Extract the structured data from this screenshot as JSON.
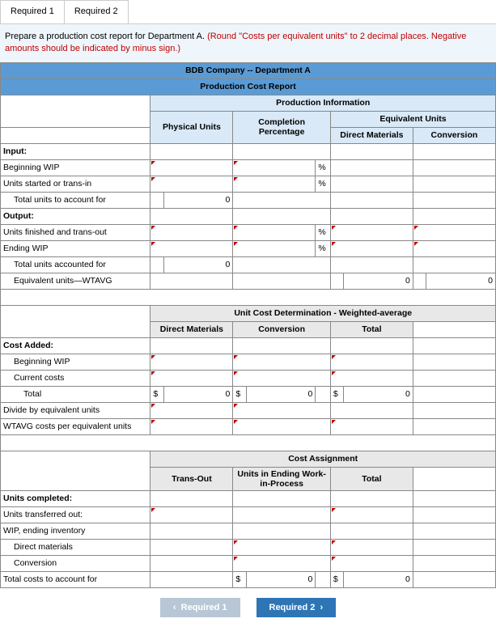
{
  "tabs": {
    "t1": "Required 1",
    "t2": "Required 2"
  },
  "instruction": {
    "black": "Prepare a production cost report for Department A. ",
    "red": "(Round \"Costs per equivalent units\" to 2 decimal places. Negative amounts should be indicated by minus sign.)"
  },
  "headers": {
    "company": "BDB Company -- Department A",
    "report": "Production Cost Report",
    "prodInfo": "Production Information",
    "equivUnits": "Equivalent Units",
    "physicalUnits": "Physical Units",
    "completionPct": "Completion Percentage",
    "directMaterials": "Direct Materials",
    "conversion": "Conversion",
    "unitCostDet": "Unit Cost Determination - Weighted-average",
    "total": "Total",
    "costAssignment": "Cost Assignment",
    "transOut": "Trans-Out",
    "unitsEndingWIP": "Units in Ending Work-in-Process"
  },
  "rows": {
    "input": "Input:",
    "beginningWIP": "Beginning WIP",
    "unitsStarted": "Units started or trans-in",
    "totalUnitsAccount": "Total units to account for",
    "output": "Output:",
    "unitsFinished": "Units finished and trans-out",
    "endingWIP": "Ending WIP",
    "totalUnitsAccounted": "Total units accounted for",
    "equivUnitsWTAVG": "Equivalent units—WTAVG",
    "costAdded": "Cost Added:",
    "currentCosts": "Current costs",
    "total": "Total",
    "divideEquiv": "Divide by equivalent units",
    "wtavgCosts": "WTAVG costs per equivalent units",
    "unitsCompleted": "Units completed:",
    "unitsTransOut": "Units transferred out:",
    "wipEndingInv": "WIP, ending inventory",
    "directMaterials": "Direct materials",
    "conversion": "Conversion",
    "totalCostsAccount": "Total costs to account for"
  },
  "values": {
    "zero": "0",
    "pct": "%",
    "dollar": "$"
  },
  "nav": {
    "prev": "Required 1",
    "next": "Required 2"
  },
  "style": {
    "header_blue": "#5b9bd5",
    "header_light": "#d9e9f7",
    "border": "#888888",
    "accent_marker": "#c00000",
    "nav_prev_bg": "#b8c7d6",
    "nav_next_bg": "#2e75b6",
    "instruction_bg": "#eef6fb"
  }
}
